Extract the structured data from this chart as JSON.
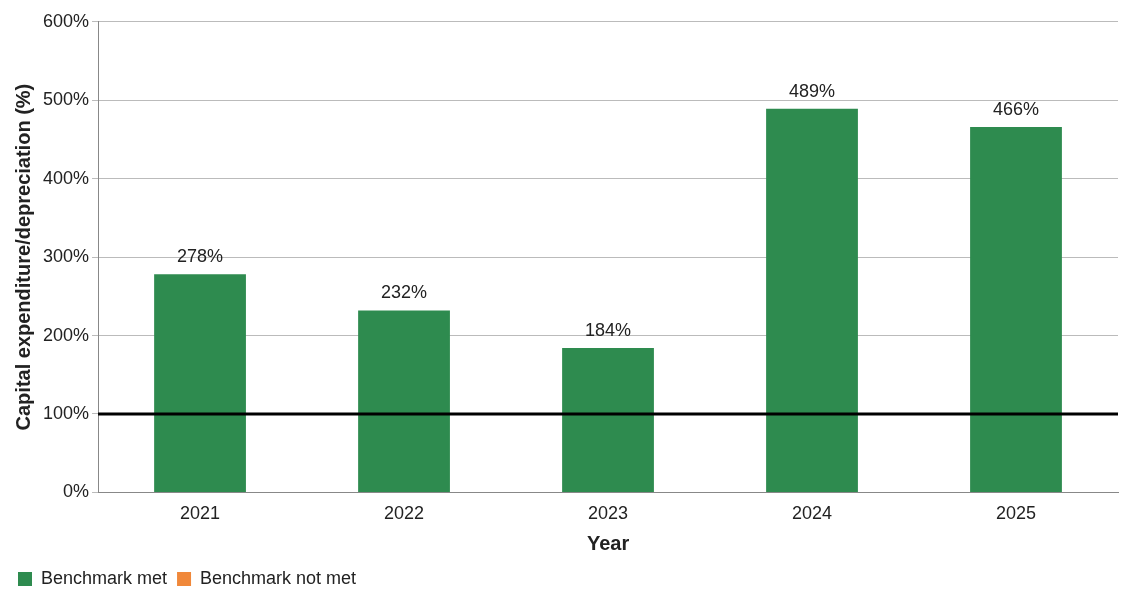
{
  "chart_data": {
    "type": "bar",
    "xlabel": "Year",
    "ylabel": "Capital expenditure/depreciation (%)",
    "categories": [
      "2021",
      "2022",
      "2023",
      "2024",
      "2025"
    ],
    "series": [
      {
        "name": "Benchmark met",
        "color": "#2e8b4f",
        "values": [
          278,
          232,
          184,
          489,
          466
        ],
        "value_labels": [
          "278%",
          "232%",
          "184%",
          "489%",
          "466%"
        ]
      },
      {
        "name": "Benchmark not met",
        "color": "#f0883a",
        "values": [
          null,
          null,
          null,
          null,
          null
        ]
      }
    ],
    "ylim": [
      0,
      600
    ],
    "yticks": [
      {
        "value": 0,
        "label": "0%"
      },
      {
        "value": 100,
        "label": "100%"
      },
      {
        "value": 200,
        "label": "200%"
      },
      {
        "value": 300,
        "label": "300%"
      },
      {
        "value": 400,
        "label": "400%"
      },
      {
        "value": 500,
        "label": "500%"
      },
      {
        "value": 600,
        "label": "600%"
      }
    ],
    "ref_lines": [
      {
        "axis": "y",
        "value": 100,
        "color": "#000000"
      }
    ],
    "grid": "y",
    "legend": "bottom left"
  }
}
